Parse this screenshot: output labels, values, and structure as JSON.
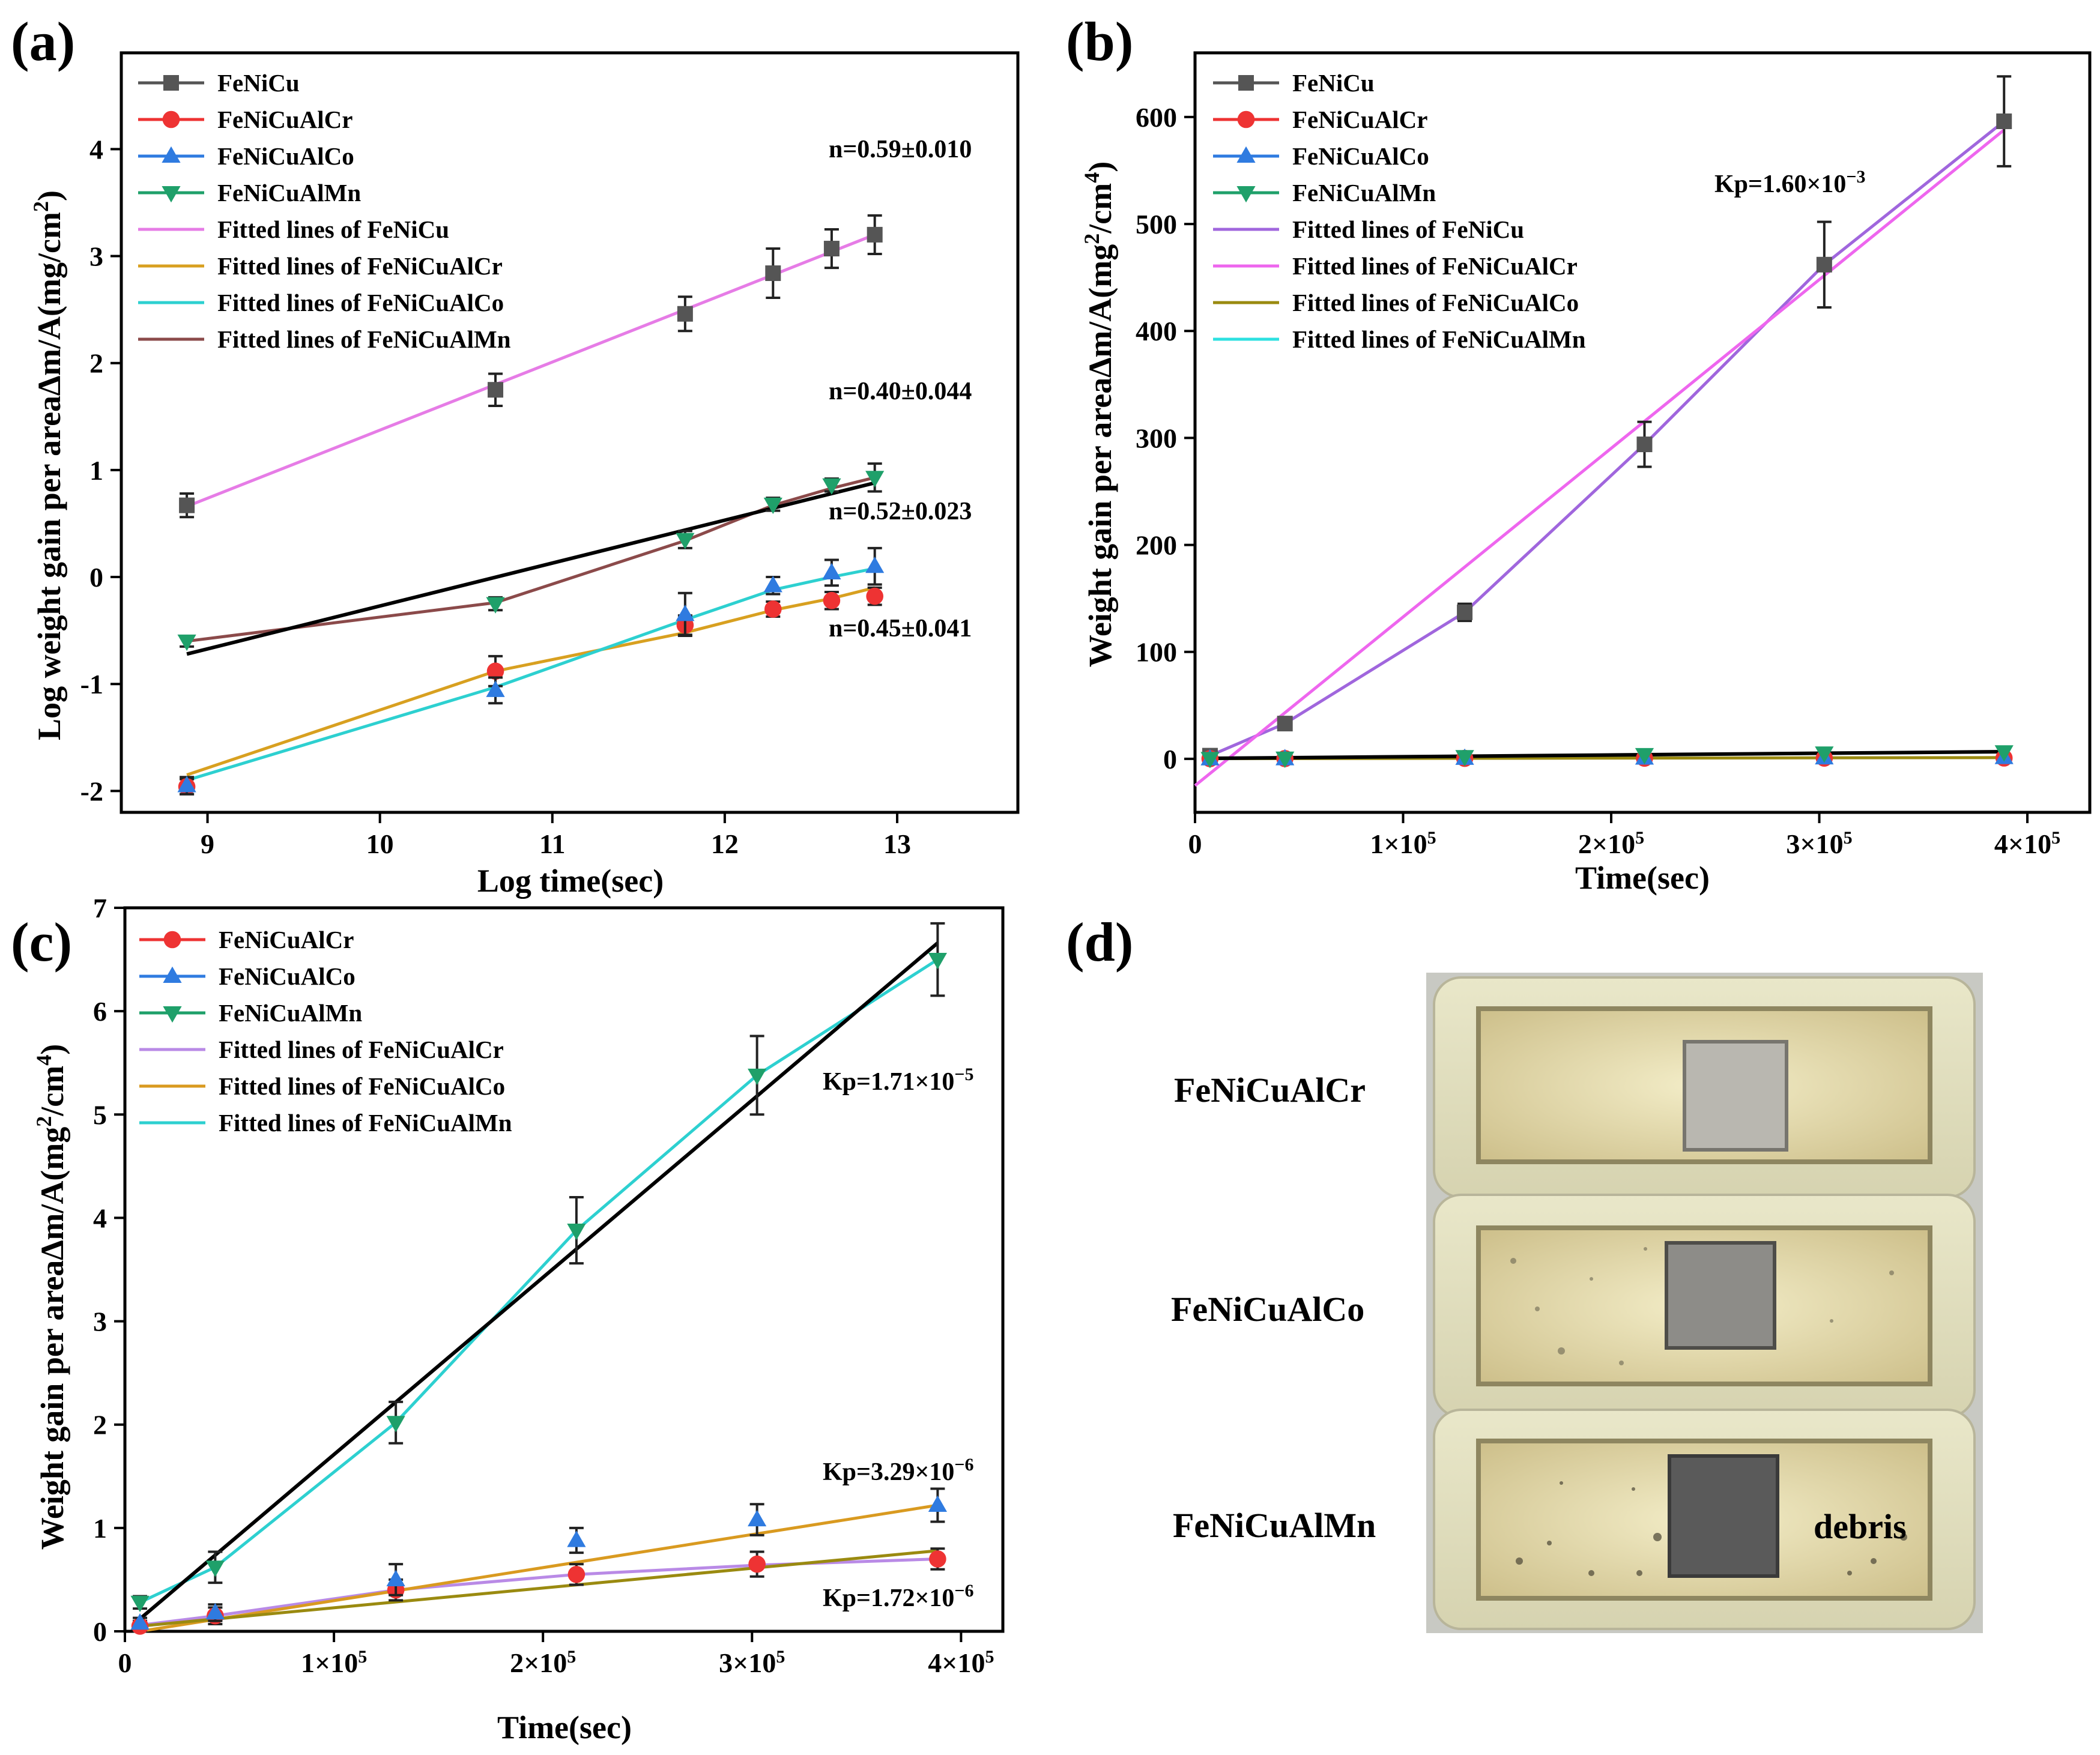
{
  "chart_data": [
    {
      "panel_label": "(a)",
      "type": "scatter",
      "xlabel": "Log time(sec)",
      "ylabel": "Log weight gain per area∆m/A(mg/cm",
      "ylabel_sup": "2",
      "ylabel_tail": ")",
      "xlim": [
        8.5,
        13.7
      ],
      "ylim": [
        -2.2,
        4.9
      ],
      "xticks": [
        9,
        10,
        11,
        12,
        13
      ],
      "xtick_labels": [
        "9",
        "10",
        "11",
        "12",
        "13"
      ],
      "yticks": [
        -2,
        -1,
        0,
        1,
        2,
        3,
        4
      ],
      "ytick_labels": [
        "-2",
        "-1",
        "0",
        "1",
        "2",
        "3",
        "4"
      ],
      "x": [
        8.88,
        10.67,
        11.77,
        12.28,
        12.62,
        12.87
      ],
      "series": [
        {
          "name": "FeNiCu",
          "marker": "square",
          "color": "#555555",
          "y": [
            0.67,
            1.75,
            2.46,
            2.84,
            3.07,
            3.2
          ],
          "err": [
            0.11,
            0.15,
            0.16,
            0.23,
            0.18,
            0.18
          ]
        },
        {
          "name": "FeNiCuAlCr",
          "marker": "circle",
          "color": "#ee3333",
          "y": [
            -1.96,
            -0.88,
            -0.45,
            -0.3,
            -0.22,
            -0.18
          ],
          "err": [
            0.07,
            0.14,
            0.09,
            0.07,
            0.08,
            0.08
          ]
        },
        {
          "name": "FeNiCuAlCo",
          "marker": "triangle-up",
          "color": "#2f7be0",
          "y": [
            -1.95,
            -1.06,
            -0.35,
            -0.08,
            0.04,
            0.1
          ],
          "err": [
            0.08,
            0.12,
            0.2,
            0.08,
            0.12,
            0.17
          ]
        },
        {
          "name": "FeNiCuAlMn",
          "marker": "triangle-down",
          "color": "#1fa06a",
          "y": [
            -0.6,
            -0.25,
            0.35,
            0.68,
            0.86,
            0.93
          ],
          "err": [
            0.05,
            0.06,
            0.08,
            0.06,
            0.06,
            0.13
          ]
        }
      ],
      "fitted_lines": [
        {
          "name": "Fitted lines of FeNiCu",
          "color": "#e67ce6",
          "x": [
            8.88,
            12.87
          ],
          "y": [
            0.66,
            3.2
          ]
        },
        {
          "name": "Fitted lines of FeNiCuAlCr",
          "color": "#d8a020",
          "x": [
            8.88,
            10.67,
            11.77,
            12.28,
            12.62,
            12.87
          ],
          "y": [
            -1.85,
            -0.88,
            -0.52,
            -0.31,
            -0.2,
            -0.1
          ]
        },
        {
          "name": "Fitted lines of FeNiCuAlCo",
          "color": "#2dd0d0",
          "x": [
            8.88,
            10.67,
            11.77,
            12.28,
            12.62,
            12.87
          ],
          "y": [
            -1.9,
            -1.03,
            -0.4,
            -0.12,
            0.0,
            0.08
          ]
        },
        {
          "name": "Fitted lines of FeNiCuAlMn",
          "color": "#8b4a4a",
          "x": [
            8.88,
            10.67,
            11.77,
            12.28,
            12.62,
            12.87
          ],
          "y": [
            -0.6,
            -0.24,
            0.34,
            0.67,
            0.83,
            0.93
          ]
        },
        {
          "name": "",
          "color": "#000000",
          "x": [
            8.88,
            12.87
          ],
          "y": [
            -0.72,
            0.88
          ]
        }
      ],
      "annotations": [
        "n=0.59±0.010",
        "n=0.40±0.044",
        "n=0.52±0.023",
        "n=0.45±0.041"
      ]
    },
    {
      "panel_label": "(b)",
      "type": "line",
      "xlabel": "Time(sec)",
      "ylabel": "Weight gain per area∆m/A(mg",
      "ylabel_sup": "2",
      "ylabel_mid": "/cm",
      "ylabel_sup2": "4",
      "ylabel_tail": ")",
      "xlim": [
        0,
        430000
      ],
      "ylim": [
        -50,
        660
      ],
      "xticks": [
        0,
        100000,
        200000,
        300000,
        400000
      ],
      "xtick_labels": [
        "0",
        "1×10",
        "2×10",
        "3×10",
        "4×10"
      ],
      "xtick_exp": "5",
      "yticks": [
        0,
        100,
        200,
        300,
        400,
        500,
        600
      ],
      "ytick_labels": [
        "0",
        "100",
        "200",
        "300",
        "400",
        "500",
        "600"
      ],
      "x": [
        7200,
        43200,
        129600,
        216000,
        302400,
        388800
      ],
      "series": [
        {
          "name": "FeNiCu",
          "marker": "square",
          "color": "#555555",
          "y": [
            3,
            33,
            137,
            294,
            462,
            596
          ],
          "err": [
            3,
            4,
            8,
            21,
            40,
            42
          ]
        },
        {
          "name": "FeNiCuAlCr",
          "marker": "circle",
          "color": "#ee3333",
          "y": [
            0.2,
            0.3,
            0.5,
            0.6,
            0.7,
            0.8
          ],
          "err": [
            0,
            0,
            0,
            0,
            0,
            0
          ]
        },
        {
          "name": "FeNiCuAlCo",
          "marker": "triangle-up",
          "color": "#2f7be0",
          "y": [
            0.1,
            0.2,
            0.6,
            0.8,
            1.0,
            1.3
          ],
          "err": [
            0,
            0,
            0,
            0,
            0,
            0
          ]
        },
        {
          "name": "FeNiCuAlMn",
          "marker": "triangle-down",
          "color": "#1fa06a",
          "y": [
            0.3,
            0.6,
            2.0,
            3.9,
            5.4,
            6.5
          ],
          "err": [
            0,
            0,
            0,
            0,
            0,
            0
          ]
        }
      ],
      "fitted_lines": [
        {
          "name": "Fitted lines of FeNiCu",
          "color": "#a066dd",
          "x": [
            7200,
            43200,
            129600,
            216000,
            302400,
            388800
          ],
          "y": [
            3,
            33,
            137,
            294,
            462,
            596
          ]
        },
        {
          "name": "Fitted lines of FeNiCuAlCr",
          "color": "#ee66ee",
          "x": [
            0,
            388800
          ],
          "y": [
            -25,
            588
          ]
        },
        {
          "name": "Fitted lines of FeNiCuAlCo",
          "color": "#9a8a10",
          "x": [
            7200,
            388800
          ],
          "y": [
            0.2,
            1.2
          ]
        },
        {
          "name": "Fitted lines of FeNiCuAlMn",
          "color": "#2de0e0",
          "x": [
            7200,
            388800
          ],
          "y": [
            0.3,
            6.5
          ]
        },
        {
          "name": "",
          "color": "#000000",
          "x": [
            7200,
            388800
          ],
          "y": [
            0.5,
            6.7
          ]
        }
      ],
      "annotations": [
        "Kp=1.60×10",
        "−3"
      ]
    },
    {
      "panel_label": "(c)",
      "type": "line",
      "xlabel": "Time(sec)",
      "ylabel": "Weight gain per area∆m/A(mg",
      "ylabel_sup": "2",
      "ylabel_mid": "/cm",
      "ylabel_sup2": "4",
      "ylabel_tail": ")",
      "xlim": [
        0,
        420000
      ],
      "ylim": [
        0,
        7
      ],
      "xticks": [
        0,
        100000,
        200000,
        300000,
        400000
      ],
      "xtick_labels": [
        "0",
        "1×10",
        "2×10",
        "3×10",
        "4×10"
      ],
      "xtick_exp": "5",
      "yticks": [
        0,
        1,
        2,
        3,
        4,
        5,
        6,
        7
      ],
      "ytick_labels": [
        "0",
        "1",
        "2",
        "3",
        "4",
        "5",
        "6",
        "7"
      ],
      "x": [
        7200,
        43200,
        129600,
        216000,
        302400,
        388800
      ],
      "series": [
        {
          "name": "FeNiCuAlCr",
          "marker": "circle",
          "color": "#ee3333",
          "y": [
            0.05,
            0.15,
            0.4,
            0.55,
            0.65,
            0.7
          ],
          "err": [
            0.05,
            0.08,
            0.1,
            0.1,
            0.12,
            0.1
          ]
        },
        {
          "name": "FeNiCuAlCo",
          "marker": "triangle-up",
          "color": "#2f7be0",
          "y": [
            0.08,
            0.18,
            0.5,
            0.88,
            1.08,
            1.22
          ],
          "err": [
            0.05,
            0.08,
            0.15,
            0.12,
            0.15,
            0.16
          ]
        },
        {
          "name": "FeNiCuAlMn",
          "marker": "triangle-down",
          "color": "#1fa06a",
          "y": [
            0.28,
            0.62,
            2.02,
            3.88,
            5.38,
            6.5
          ],
          "err": [
            0.06,
            0.15,
            0.2,
            0.32,
            0.38,
            0.35
          ]
        }
      ],
      "fitted_lines": [
        {
          "name": "Fitted lines of FeNiCuAlCr",
          "color": "#b98ae6",
          "x": [
            7200,
            43200,
            129600,
            216000,
            302400,
            388800
          ],
          "y": [
            0.06,
            0.15,
            0.4,
            0.55,
            0.64,
            0.7
          ]
        },
        {
          "name": "Fitted lines of FeNiCuAlCo",
          "color": "#d99a20",
          "x": [
            7200,
            388800
          ],
          "y": [
            0.0,
            1.22
          ]
        },
        {
          "name": "Fitted lines of FeNiCuAlMn",
          "color": "#2dd0d0",
          "x": [
            7200,
            43200,
            129600,
            216000,
            302400,
            388800
          ],
          "y": [
            0.28,
            0.62,
            2.02,
            3.88,
            5.38,
            6.5
          ]
        },
        {
          "name": "",
          "color": "#9a8a10",
          "x": [
            7200,
            388800
          ],
          "y": [
            0.05,
            0.78
          ]
        },
        {
          "name": "",
          "color": "#000000",
          "x": [
            7200,
            388800
          ],
          "y": [
            0.12,
            6.66
          ]
        }
      ],
      "annotations": [
        "Kp=1.71×10",
        "−5",
        "Kp=3.29×10",
        "−6",
        "Kp=1.72×10",
        "−6"
      ]
    }
  ],
  "photo": {
    "panel_label": "(d)",
    "labels": [
      "FeNiCuAlCr",
      "FeNiCuAlCo",
      "FeNiCuAlMn"
    ],
    "debris_label": "debris"
  }
}
